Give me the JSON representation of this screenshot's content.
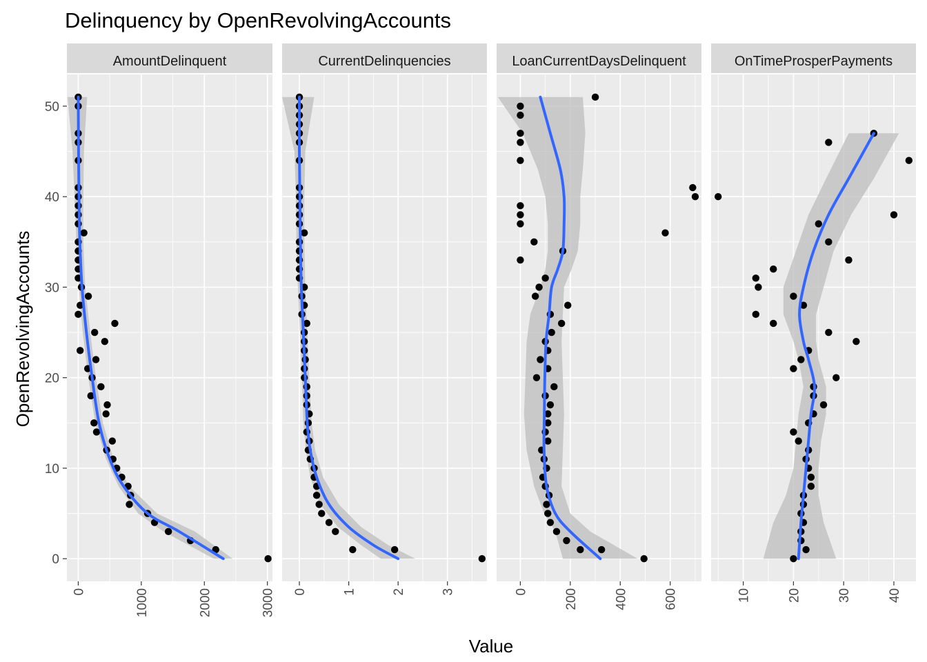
{
  "chart_data": {
    "type": "scatter",
    "title": "Delinquency by OpenRevolvingAccounts",
    "xlabel": "Value",
    "ylabel": "OpenRevolvingAccounts",
    "ylim": [
      -2.5,
      53.5
    ],
    "yticks": [
      "0",
      "10",
      "20",
      "30",
      "40",
      "50"
    ],
    "grid": true,
    "overlay": "smoothed trend line with confidence band",
    "colors": {
      "panel_bg": "#ebebeb",
      "strip_bg": "#d9d9d9",
      "grid": "#ffffff",
      "points": "#000000",
      "trend": "#3366ff",
      "band": "#bdbdbd"
    },
    "panels": [
      {
        "name": "AmountDelinquent",
        "xlim": [
          -180,
          3080
        ],
        "xticks": [
          "0",
          "1000",
          "2000",
          "3000"
        ],
        "points": [
          [
            0,
            51
          ],
          [
            0,
            50
          ],
          [
            0,
            47
          ],
          [
            0,
            46
          ],
          [
            0,
            44
          ],
          [
            0,
            41
          ],
          [
            0,
            40
          ],
          [
            0,
            39
          ],
          [
            0,
            38
          ],
          [
            0,
            37
          ],
          [
            90,
            36
          ],
          [
            0,
            35
          ],
          [
            0,
            34
          ],
          [
            0,
            33
          ],
          [
            0,
            32
          ],
          [
            0,
            31
          ],
          [
            50,
            30
          ],
          [
            160,
            29
          ],
          [
            30,
            28
          ],
          [
            0,
            27
          ],
          [
            580,
            26
          ],
          [
            260,
            25
          ],
          [
            420,
            24
          ],
          [
            30,
            23
          ],
          [
            280,
            22
          ],
          [
            150,
            21
          ],
          [
            220,
            20
          ],
          [
            360,
            19
          ],
          [
            200,
            18
          ],
          [
            460,
            17
          ],
          [
            440,
            16
          ],
          [
            250,
            15
          ],
          [
            290,
            14
          ],
          [
            540,
            13
          ],
          [
            450,
            12
          ],
          [
            550,
            11
          ],
          [
            610,
            10
          ],
          [
            690,
            9
          ],
          [
            790,
            8
          ],
          [
            830,
            7
          ],
          [
            810,
            6
          ],
          [
            1100,
            5
          ],
          [
            1210,
            4
          ],
          [
            1430,
            3
          ],
          [
            1780,
            2
          ],
          [
            2180,
            1
          ],
          [
            3010,
            0
          ]
        ],
        "trend": [
          [
            0,
            51
          ],
          [
            5,
            45
          ],
          [
            12,
            40
          ],
          [
            25,
            35
          ],
          [
            60,
            30
          ],
          [
            130,
            25
          ],
          [
            220,
            20
          ],
          [
            330,
            15
          ],
          [
            500,
            11
          ],
          [
            720,
            8
          ],
          [
            1100,
            5
          ],
          [
            1600,
            3
          ],
          [
            2300,
            0
          ]
        ],
        "band": [
          [
            -170,
            140,
            51
          ],
          [
            -90,
            90,
            45
          ],
          [
            -60,
            80,
            40
          ],
          [
            -30,
            80,
            35
          ],
          [
            10,
            110,
            30
          ],
          [
            70,
            190,
            25
          ],
          [
            160,
            280,
            20
          ],
          [
            270,
            390,
            15
          ],
          [
            440,
            560,
            11
          ],
          [
            640,
            810,
            8
          ],
          [
            950,
            1250,
            5
          ],
          [
            1350,
            1850,
            3
          ],
          [
            2150,
            2450,
            0
          ]
        ]
      },
      {
        "name": "CurrentDelinquencies",
        "xlim": [
          -0.35,
          3.8
        ],
        "xticks": [
          "0",
          "1",
          "2",
          "3"
        ],
        "points": [
          [
            0,
            51
          ],
          [
            0,
            50
          ],
          [
            0,
            49
          ],
          [
            0,
            48
          ],
          [
            0,
            47
          ],
          [
            0,
            46
          ],
          [
            0,
            44
          ],
          [
            0,
            41
          ],
          [
            0,
            40
          ],
          [
            0,
            39
          ],
          [
            0,
            38
          ],
          [
            0,
            37
          ],
          [
            0.1,
            36
          ],
          [
            0,
            35
          ],
          [
            0,
            34
          ],
          [
            0,
            33
          ],
          [
            0,
            32
          ],
          [
            0,
            31
          ],
          [
            0.1,
            30
          ],
          [
            0.05,
            29
          ],
          [
            0.1,
            28
          ],
          [
            0.05,
            27
          ],
          [
            0.15,
            26
          ],
          [
            0.1,
            25
          ],
          [
            0.1,
            24
          ],
          [
            0.1,
            23
          ],
          [
            0.12,
            22
          ],
          [
            0.1,
            21
          ],
          [
            0.1,
            20
          ],
          [
            0.15,
            19
          ],
          [
            0.15,
            18
          ],
          [
            0.15,
            17
          ],
          [
            0.2,
            16
          ],
          [
            0.18,
            15
          ],
          [
            0.15,
            14
          ],
          [
            0.2,
            13
          ],
          [
            0.18,
            12
          ],
          [
            0.22,
            11
          ],
          [
            0.3,
            10
          ],
          [
            0.3,
            9
          ],
          [
            0.35,
            8
          ],
          [
            0.35,
            7
          ],
          [
            0.4,
            6
          ],
          [
            0.45,
            5
          ],
          [
            0.6,
            4
          ],
          [
            0.73,
            3
          ],
          [
            1.08,
            1
          ],
          [
            1.93,
            1
          ],
          [
            3.7,
            0
          ]
        ],
        "trend": [
          [
            0,
            51
          ],
          [
            0,
            45
          ],
          [
            0.01,
            40
          ],
          [
            0.02,
            35
          ],
          [
            0.04,
            30
          ],
          [
            0.08,
            25
          ],
          [
            0.12,
            20
          ],
          [
            0.16,
            15
          ],
          [
            0.22,
            12
          ],
          [
            0.35,
            9
          ],
          [
            0.6,
            6
          ],
          [
            1.0,
            3.5
          ],
          [
            1.5,
            1.5
          ],
          [
            2.0,
            0
          ]
        ],
        "band": [
          [
            -0.35,
            0.3,
            51
          ],
          [
            -0.1,
            0.12,
            45
          ],
          [
            -0.07,
            0.1,
            40
          ],
          [
            -0.06,
            0.1,
            35
          ],
          [
            -0.03,
            0.12,
            30
          ],
          [
            0.01,
            0.16,
            25
          ],
          [
            0.05,
            0.2,
            20
          ],
          [
            0.08,
            0.25,
            15
          ],
          [
            0.13,
            0.32,
            12
          ],
          [
            0.22,
            0.48,
            9
          ],
          [
            0.42,
            0.8,
            6
          ],
          [
            0.78,
            1.25,
            3.5
          ],
          [
            1.25,
            1.8,
            1.5
          ],
          [
            1.65,
            2.35,
            0
          ]
        ]
      },
      {
        "name": "LoanCurrentDaysDelinquent",
        "xlim": [
          -95,
          725
        ],
        "xticks": [
          "0",
          "200",
          "400",
          "600"
        ],
        "points": [
          [
            300,
            51
          ],
          [
            0,
            50
          ],
          [
            0,
            49
          ],
          [
            0,
            47
          ],
          [
            0,
            46
          ],
          [
            0,
            44
          ],
          [
            690,
            41
          ],
          [
            700,
            40
          ],
          [
            0,
            39
          ],
          [
            0,
            38
          ],
          [
            0,
            37
          ],
          [
            580,
            36
          ],
          [
            55,
            35
          ],
          [
            170,
            34
          ],
          [
            0,
            33
          ],
          [
            100,
            31
          ],
          [
            75,
            30
          ],
          [
            60,
            29
          ],
          [
            190,
            28
          ],
          [
            120,
            27
          ],
          [
            165,
            26
          ],
          [
            125,
            25
          ],
          [
            100,
            24
          ],
          [
            110,
            23
          ],
          [
            80,
            22
          ],
          [
            110,
            21
          ],
          [
            65,
            20
          ],
          [
            135,
            19
          ],
          [
            100,
            18
          ],
          [
            120,
            17
          ],
          [
            110,
            16
          ],
          [
            110,
            15
          ],
          [
            100,
            14
          ],
          [
            110,
            13
          ],
          [
            85,
            12
          ],
          [
            95,
            11
          ],
          [
            105,
            10
          ],
          [
            90,
            9
          ],
          [
            100,
            8
          ],
          [
            115,
            7
          ],
          [
            105,
            6
          ],
          [
            110,
            5
          ],
          [
            120,
            4
          ],
          [
            145,
            3
          ],
          [
            185,
            2
          ],
          [
            240,
            1
          ],
          [
            325,
            1
          ],
          [
            495,
            0
          ]
        ],
        "trend": [
          [
            80,
            51
          ],
          [
            120,
            47
          ],
          [
            160,
            43
          ],
          [
            175,
            40
          ],
          [
            175,
            37
          ],
          [
            170,
            34
          ],
          [
            150,
            32
          ],
          [
            125,
            30
          ],
          [
            115,
            27
          ],
          [
            103,
            24
          ],
          [
            98,
            20
          ],
          [
            96,
            16
          ],
          [
            95,
            12
          ],
          [
            105,
            8
          ],
          [
            140,
            5
          ],
          [
            200,
            3
          ],
          [
            320,
            0
          ]
        ],
        "band": [
          [
            -90,
            250,
            51
          ],
          [
            10,
            260,
            47
          ],
          [
            70,
            250,
            43
          ],
          [
            100,
            240,
            40
          ],
          [
            110,
            240,
            37
          ],
          [
            110,
            230,
            34
          ],
          [
            100,
            205,
            32
          ],
          [
            80,
            175,
            30
          ],
          [
            40,
            170,
            27
          ],
          [
            25,
            165,
            24
          ],
          [
            20,
            170,
            20
          ],
          [
            15,
            175,
            16
          ],
          [
            25,
            170,
            12
          ],
          [
            55,
            165,
            8
          ],
          [
            95,
            200,
            5
          ],
          [
            140,
            280,
            3
          ],
          [
            170,
            470,
            0
          ]
        ]
      },
      {
        "name": "OnTimeProsperPayments",
        "xlim": [
          3.6,
          44.4
        ],
        "xticks": [
          "10",
          "20",
          "30",
          "40"
        ],
        "points": [
          [
            36,
            47
          ],
          [
            27,
            46
          ],
          [
            43,
            44
          ],
          [
            5,
            40
          ],
          [
            40,
            38
          ],
          [
            25,
            37
          ],
          [
            27,
            35
          ],
          [
            31,
            33
          ],
          [
            16,
            32
          ],
          [
            12.5,
            31
          ],
          [
            13,
            30
          ],
          [
            20,
            29
          ],
          [
            22,
            28
          ],
          [
            12.5,
            27
          ],
          [
            16,
            26
          ],
          [
            27,
            25
          ],
          [
            32.5,
            24
          ],
          [
            23,
            23
          ],
          [
            21.5,
            22
          ],
          [
            20,
            21
          ],
          [
            28.5,
            20
          ],
          [
            24,
            19
          ],
          [
            24,
            18
          ],
          [
            26,
            17
          ],
          [
            24,
            16
          ],
          [
            23,
            15
          ],
          [
            20,
            14
          ],
          [
            21,
            13
          ],
          [
            23,
            12
          ],
          [
            22.5,
            11
          ],
          [
            23,
            10
          ],
          [
            23.5,
            9
          ],
          [
            23.5,
            8
          ],
          [
            22,
            7
          ],
          [
            22,
            6
          ],
          [
            21.5,
            5
          ],
          [
            22,
            4
          ],
          [
            21.5,
            3
          ],
          [
            21.5,
            2
          ],
          [
            22.5,
            1
          ],
          [
            20,
            0
          ]
        ],
        "trend": [
          [
            36,
            47
          ],
          [
            31,
            42
          ],
          [
            27,
            38
          ],
          [
            24,
            34
          ],
          [
            22,
            30
          ],
          [
            21.2,
            27
          ],
          [
            22,
            24
          ],
          [
            23,
            22
          ],
          [
            24.2,
            19
          ],
          [
            23.5,
            16
          ],
          [
            23,
            13
          ],
          [
            22.5,
            10
          ],
          [
            22,
            7
          ],
          [
            21.5,
            4
          ],
          [
            21,
            0
          ]
        ],
        "band": [
          [
            31,
            41,
            47
          ],
          [
            26.5,
            36,
            42
          ],
          [
            23,
            31.5,
            38
          ],
          [
            20.5,
            28,
            34
          ],
          [
            18,
            26,
            30
          ],
          [
            18,
            24.5,
            27
          ],
          [
            20,
            24.5,
            24
          ],
          [
            21,
            25,
            22
          ],
          [
            22,
            26.5,
            19
          ],
          [
            21,
            26.5,
            16
          ],
          [
            20.5,
            25.5,
            13
          ],
          [
            20,
            25,
            10
          ],
          [
            18.5,
            25,
            7
          ],
          [
            16,
            26,
            4
          ],
          [
            14,
            28.5,
            0
          ]
        ]
      }
    ]
  }
}
